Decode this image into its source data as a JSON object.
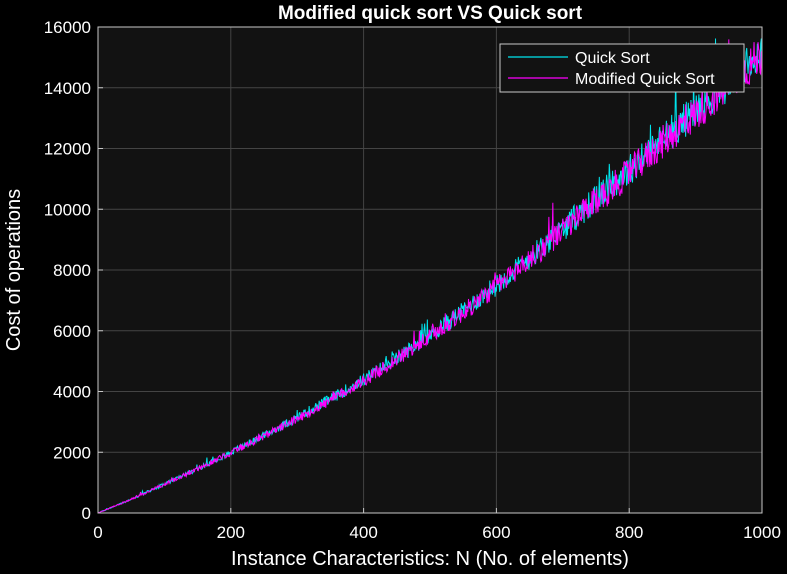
{
  "chart_data": {
    "type": "line",
    "title": "Modified quick sort VS Quick sort",
    "xlabel": "Instance Characteristics: N (No. of elements)",
    "ylabel": "Cost of operations",
    "xlim": [
      0,
      1000
    ],
    "ylim": [
      0,
      16000
    ],
    "xticks": [
      0,
      200,
      400,
      600,
      800,
      1000
    ],
    "yticks": [
      0,
      2000,
      4000,
      6000,
      8000,
      10000,
      12000,
      14000,
      16000
    ],
    "grid": true,
    "legend_position": "top-right",
    "background": "#121212",
    "series": [
      {
        "name": "Quick Sort",
        "color": "#00e5ee",
        "x": [
          0,
          50,
          100,
          150,
          200,
          250,
          300,
          350,
          400,
          450,
          500,
          550,
          600,
          650,
          700,
          750,
          800,
          850,
          900,
          950,
          1000
        ],
        "y": [
          0,
          450,
          950,
          1450,
          2000,
          2550,
          3150,
          3750,
          4400,
          5100,
          5850,
          6650,
          7500,
          8400,
          9350,
          10350,
          11300,
          12300,
          13250,
          14200,
          15200
        ]
      },
      {
        "name": "Modified Quick Sort",
        "color": "#ff00ff",
        "x": [
          0,
          50,
          100,
          150,
          200,
          250,
          300,
          350,
          400,
          450,
          500,
          550,
          600,
          650,
          700,
          750,
          800,
          850,
          900,
          950,
          1000
        ],
        "y": [
          0,
          450,
          950,
          1450,
          1980,
          2520,
          3100,
          3700,
          4350,
          5050,
          5800,
          6600,
          7450,
          8350,
          9300,
          10250,
          11200,
          12200,
          13150,
          14100,
          15100
        ]
      }
    ]
  }
}
